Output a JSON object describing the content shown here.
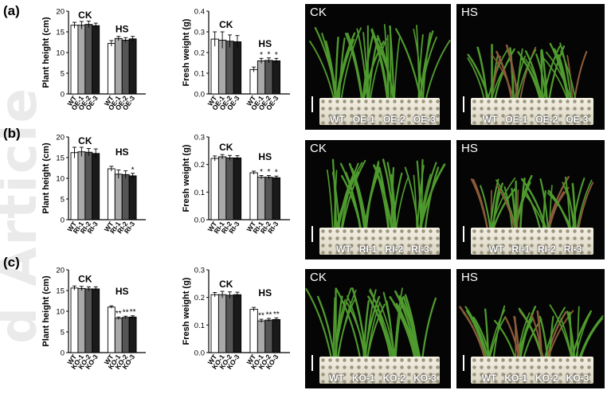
{
  "watermark": "d Article",
  "panels": [
    {
      "label": "(a)",
      "height_chart": {
        "type": "bar",
        "ylabel": "Plant height (cm)",
        "ylim": [
          0,
          20
        ],
        "yticks": [
          "0",
          "5",
          "10",
          "15",
          "20"
        ],
        "groups": [
          {
            "name": "CK",
            "categories": [
              "WT",
              "OE-1",
              "OE-2",
              "OE-3"
            ],
            "values": [
              16.6,
              16.6,
              16.8,
              16.5
            ],
            "errors": [
              0.7,
              0.9,
              0.8,
              0.6
            ],
            "sig": [
              "",
              "",
              "",
              ""
            ]
          },
          {
            "name": "HS",
            "categories": [
              "WT",
              "OE-1",
              "OE-2",
              "OE-3"
            ],
            "values": [
              12.2,
              13.4,
              13.0,
              13.3
            ],
            "errors": [
              0.7,
              0.5,
              0.6,
              0.6
            ],
            "sig": [
              "",
              "",
              "",
              ""
            ]
          }
        ]
      },
      "weight_chart": {
        "type": "bar",
        "ylabel": "Fresh weight (g)",
        "ylim": [
          0,
          0.4
        ],
        "yticks": [
          "0.0",
          "0.1",
          "0.2",
          "0.3",
          "0.4"
        ],
        "groups": [
          {
            "name": "CK",
            "categories": [
              "WT",
              "OE-1",
              "OE-2",
              "OE-3"
            ],
            "values": [
              0.265,
              0.26,
              0.255,
              0.252
            ],
            "errors": [
              0.035,
              0.04,
              0.03,
              0.03
            ],
            "sig": [
              "",
              "",
              "",
              ""
            ]
          },
          {
            "name": "HS",
            "categories": [
              "WT",
              "OE-1",
              "OE-2",
              "OE-3"
            ],
            "values": [
              0.118,
              0.16,
              0.162,
              0.16
            ],
            "errors": [
              0.012,
              0.012,
              0.012,
              0.012
            ],
            "sig": [
              "",
              "*",
              "*",
              "*"
            ]
          }
        ]
      },
      "photos": [
        {
          "title": "CK",
          "labels": [
            "WT",
            "OE-1",
            "OE-2",
            "OE-3"
          ]
        },
        {
          "title": "HS",
          "labels": [
            "WT",
            "OE-1",
            "OE-2",
            "OE-3"
          ]
        }
      ]
    },
    {
      "label": "(b)",
      "height_chart": {
        "type": "bar",
        "ylabel": "Plant height (cm)",
        "ylim": [
          0,
          20
        ],
        "yticks": [
          "0",
          "5",
          "10",
          "15",
          "20"
        ],
        "groups": [
          {
            "name": "CK",
            "categories": [
              "WT",
              "RI-1",
              "RI-2",
              "RI-3"
            ],
            "values": [
              16.2,
              16.4,
              16.3,
              16.0
            ],
            "errors": [
              1.3,
              1.1,
              0.9,
              1.1
            ],
            "sig": [
              "",
              "",
              "",
              ""
            ]
          },
          {
            "name": "HS",
            "categories": [
              "WT",
              "RI-1",
              "RI-2",
              "RI-3"
            ],
            "values": [
              12.3,
              11.0,
              10.9,
              10.6
            ],
            "errors": [
              0.6,
              1.0,
              0.9,
              0.6
            ],
            "sig": [
              "",
              "",
              "",
              "*"
            ]
          }
        ]
      },
      "weight_chart": {
        "type": "bar",
        "ylabel": "Fresh weight (g)",
        "ylim": [
          0,
          0.3
        ],
        "yticks": [
          "0.0",
          "0.1",
          "0.2",
          "0.3"
        ],
        "groups": [
          {
            "name": "CK",
            "categories": [
              "WT",
              "RI-1",
              "RI-2",
              "RI-3"
            ],
            "values": [
              0.222,
              0.228,
              0.224,
              0.224
            ],
            "errors": [
              0.009,
              0.008,
              0.009,
              0.008
            ],
            "sig": [
              "",
              "",
              "",
              ""
            ]
          },
          {
            "name": "HS",
            "categories": [
              "WT",
              "RI-1",
              "RI-2",
              "RI-3"
            ],
            "values": [
              0.17,
              0.154,
              0.154,
              0.152
            ],
            "errors": [
              0.006,
              0.006,
              0.006,
              0.006
            ],
            "sig": [
              "",
              "*",
              "*",
              "*"
            ]
          }
        ]
      },
      "photos": [
        {
          "title": "CK",
          "labels": [
            "WT",
            "RI-1",
            "RI-2",
            "RI-3"
          ]
        },
        {
          "title": "HS",
          "labels": [
            "WT",
            "RI-1",
            "RI-2",
            "RI-3"
          ]
        }
      ]
    },
    {
      "label": "(c)",
      "height_chart": {
        "type": "bar",
        "ylabel": "Plant height (cm)",
        "ylim": [
          0,
          20
        ],
        "yticks": [
          "0",
          "5",
          "10",
          "15",
          "20"
        ],
        "groups": [
          {
            "name": "CK",
            "categories": [
              "WT",
              "KO-1",
              "KO-2",
              "KO-3"
            ],
            "values": [
              15.6,
              15.5,
              15.4,
              15.4
            ],
            "errors": [
              0.5,
              0.5,
              0.5,
              0.5
            ],
            "sig": [
              "",
              "",
              "",
              ""
            ]
          },
          {
            "name": "HS",
            "categories": [
              "WT",
              "KO-1",
              "KO-2",
              "KO-3"
            ],
            "values": [
              11.0,
              8.3,
              8.5,
              8.6
            ],
            "errors": [
              0.3,
              0.3,
              0.3,
              0.3
            ],
            "sig": [
              "",
              "**",
              "**",
              "**"
            ]
          }
        ]
      },
      "weight_chart": {
        "type": "bar",
        "ylabel": "Fresh weight (g)",
        "ylim": [
          0,
          0.3
        ],
        "yticks": [
          "0.0",
          "0.1",
          "0.2",
          "0.3"
        ],
        "groups": [
          {
            "name": "CK",
            "categories": [
              "WT",
              "KO-1",
              "KO-2",
              "KO-3"
            ],
            "values": [
              0.21,
              0.21,
              0.208,
              0.21
            ],
            "errors": [
              0.008,
              0.012,
              0.012,
              0.009
            ],
            "sig": [
              "",
              "",
              "",
              ""
            ]
          },
          {
            "name": "HS",
            "categories": [
              "WT",
              "KO-1",
              "KO-2",
              "KO-3"
            ],
            "values": [
              0.157,
              0.115,
              0.118,
              0.12
            ],
            "errors": [
              0.007,
              0.006,
              0.006,
              0.006
            ],
            "sig": [
              "",
              "**",
              "**",
              "**"
            ]
          }
        ]
      },
      "photos": [
        {
          "title": "CK",
          "labels": [
            "WT",
            "KO-1",
            "KO-2",
            "KO-3"
          ]
        },
        {
          "title": "HS",
          "labels": [
            "WT",
            "KO-1",
            "KO-2",
            "KO-3"
          ]
        }
      ]
    }
  ],
  "chart_data": [
    {
      "type": "bar",
      "panel": "(a)",
      "ylabel": "Plant height (cm)",
      "ylim": [
        0,
        20
      ],
      "categories": [
        "WT",
        "OE-1",
        "OE-2",
        "OE-3"
      ],
      "series": [
        {
          "name": "CK",
          "values": [
            16.6,
            16.6,
            16.8,
            16.5
          ]
        },
        {
          "name": "HS",
          "values": [
            12.2,
            13.4,
            13.0,
            13.3
          ]
        }
      ]
    },
    {
      "type": "bar",
      "panel": "(a)",
      "ylabel": "Fresh weight (g)",
      "ylim": [
        0,
        0.4
      ],
      "categories": [
        "WT",
        "OE-1",
        "OE-2",
        "OE-3"
      ],
      "series": [
        {
          "name": "CK",
          "values": [
            0.265,
            0.26,
            0.255,
            0.252
          ]
        },
        {
          "name": "HS",
          "values": [
            0.118,
            0.16,
            0.162,
            0.16
          ]
        }
      ]
    },
    {
      "type": "bar",
      "panel": "(b)",
      "ylabel": "Plant height (cm)",
      "ylim": [
        0,
        20
      ],
      "categories": [
        "WT",
        "RI-1",
        "RI-2",
        "RI-3"
      ],
      "series": [
        {
          "name": "CK",
          "values": [
            16.2,
            16.4,
            16.3,
            16.0
          ]
        },
        {
          "name": "HS",
          "values": [
            12.3,
            11.0,
            10.9,
            10.6
          ]
        }
      ]
    },
    {
      "type": "bar",
      "panel": "(b)",
      "ylabel": "Fresh weight (g)",
      "ylim": [
        0,
        0.3
      ],
      "categories": [
        "WT",
        "RI-1",
        "RI-2",
        "RI-3"
      ],
      "series": [
        {
          "name": "CK",
          "values": [
            0.222,
            0.228,
            0.224,
            0.224
          ]
        },
        {
          "name": "HS",
          "values": [
            0.17,
            0.154,
            0.154,
            0.152
          ]
        }
      ]
    },
    {
      "type": "bar",
      "panel": "(c)",
      "ylabel": "Plant height (cm)",
      "ylim": [
        0,
        20
      ],
      "categories": [
        "WT",
        "KO-1",
        "KO-2",
        "KO-3"
      ],
      "series": [
        {
          "name": "CK",
          "values": [
            15.6,
            15.5,
            15.4,
            15.4
          ]
        },
        {
          "name": "HS",
          "values": [
            11.0,
            8.3,
            8.5,
            8.6
          ]
        }
      ]
    },
    {
      "type": "bar",
      "panel": "(c)",
      "ylabel": "Fresh weight (g)",
      "ylim": [
        0,
        0.3
      ],
      "categories": [
        "WT",
        "KO-1",
        "KO-2",
        "KO-3"
      ],
      "series": [
        {
          "name": "CK",
          "values": [
            0.21,
            0.21,
            0.208,
            0.21
          ]
        },
        {
          "name": "HS",
          "values": [
            0.157,
            0.115,
            0.118,
            0.12
          ]
        }
      ]
    }
  ],
  "colors": {
    "bars": [
      "#ffffff",
      "#a9a9a9",
      "#555555",
      "#1a1a1a"
    ],
    "photo_background": "#050505",
    "plant": "#4f9a2e"
  }
}
